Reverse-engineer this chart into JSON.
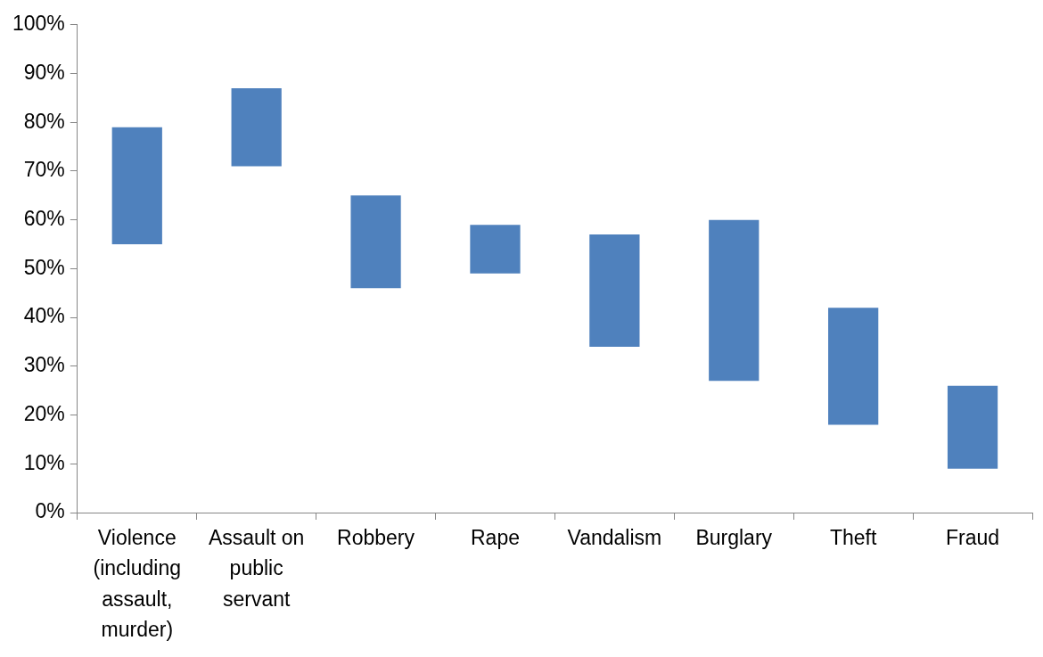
{
  "chart_data": {
    "type": "bar",
    "categories": [
      "Violence (including assault, murder)",
      "Assault on public servant",
      "Robbery",
      "Rape",
      "Vandalism",
      "Burglary",
      "Theft",
      "Fraud"
    ],
    "base": [
      55,
      71,
      46,
      49,
      34,
      27,
      18,
      9
    ],
    "values": [
      24,
      16,
      19,
      10,
      23,
      33,
      24,
      17
    ],
    "color": "#4f81bd",
    "ylim": [
      0,
      100
    ],
    "yticks": [
      {
        "value": 0,
        "label": "0%"
      },
      {
        "value": 10,
        "label": "10%"
      },
      {
        "value": 20,
        "label": "20%"
      },
      {
        "value": 30,
        "label": "30%"
      },
      {
        "value": 40,
        "label": "40%"
      },
      {
        "value": 50,
        "label": "50%"
      },
      {
        "value": 60,
        "label": "60%"
      },
      {
        "value": 70,
        "label": "70%"
      },
      {
        "value": 80,
        "label": "80%"
      },
      {
        "value": 90,
        "label": "90%"
      },
      {
        "value": 100,
        "label": "100%"
      }
    ]
  }
}
